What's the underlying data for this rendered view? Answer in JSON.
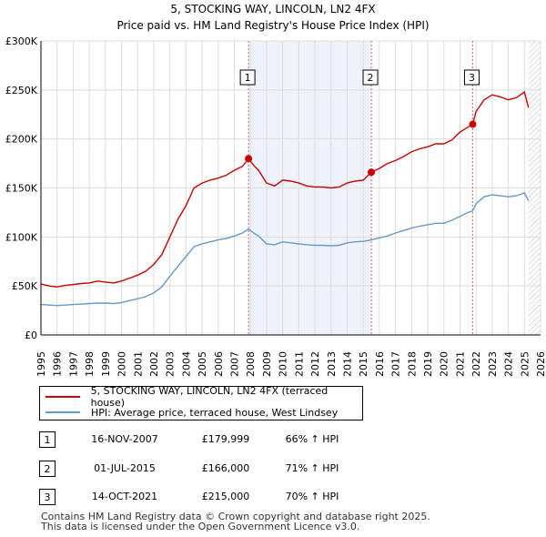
{
  "chart_data": {
    "type": "line",
    "title": "5, STOCKING WAY, LINCOLN, LN2 4FX",
    "subtitle": "Price paid vs. HM Land Registry's House Price Index (HPI)",
    "xlim": [
      1995,
      2026
    ],
    "ylim": [
      0,
      300000
    ],
    "y_ticks": [
      0,
      50000,
      100000,
      150000,
      200000,
      250000,
      300000
    ],
    "y_tick_labels": [
      "£0",
      "£50K",
      "£100K",
      "£150K",
      "£200K",
      "£250K",
      "£300K"
    ],
    "x_ticks": [
      1995,
      1996,
      1997,
      1998,
      1999,
      2000,
      2001,
      2002,
      2003,
      2004,
      2005,
      2006,
      2007,
      2008,
      2009,
      2010,
      2011,
      2012,
      2013,
      2014,
      2015,
      2016,
      2017,
      2018,
      2019,
      2020,
      2021,
      2022,
      2023,
      2024,
      2025,
      2026
    ],
    "grid": true,
    "future_hatch_start": 2025.25,
    "series": [
      {
        "name": "5, STOCKING WAY, LINCOLN, LN2 4FX (terraced house)",
        "color": "#cc0000",
        "points": [
          [
            1995,
            52000
          ],
          [
            1995.5,
            50000
          ],
          [
            1996,
            49000
          ],
          [
            1996.5,
            50500
          ],
          [
            1997,
            51500
          ],
          [
            1997.5,
            52500
          ],
          [
            1998,
            53000
          ],
          [
            1998.5,
            55000
          ],
          [
            1999,
            54000
          ],
          [
            1999.5,
            53000
          ],
          [
            2000,
            55000
          ],
          [
            2000.5,
            58000
          ],
          [
            2001,
            61000
          ],
          [
            2001.5,
            65000
          ],
          [
            2002,
            72000
          ],
          [
            2002.5,
            82000
          ],
          [
            2003,
            100000
          ],
          [
            2003.5,
            118000
          ],
          [
            2004,
            132000
          ],
          [
            2004.5,
            150000
          ],
          [
            2005,
            155000
          ],
          [
            2005.5,
            158000
          ],
          [
            2006,
            160000
          ],
          [
            2006.5,
            163000
          ],
          [
            2007,
            168000
          ],
          [
            2007.5,
            172000
          ],
          [
            2007.88,
            179999
          ],
          [
            2008.2,
            173000
          ],
          [
            2008.5,
            168000
          ],
          [
            2009,
            155000
          ],
          [
            2009.5,
            152000
          ],
          [
            2010,
            158000
          ],
          [
            2010.5,
            157000
          ],
          [
            2011,
            155000
          ],
          [
            2011.5,
            152000
          ],
          [
            2012,
            151000
          ],
          [
            2012.5,
            151000
          ],
          [
            2013,
            150000
          ],
          [
            2013.5,
            151000
          ],
          [
            2014,
            155000
          ],
          [
            2014.5,
            157000
          ],
          [
            2015,
            158000
          ],
          [
            2015.5,
            166000
          ],
          [
            2016,
            170000
          ],
          [
            2016.5,
            175000
          ],
          [
            2017,
            178000
          ],
          [
            2017.5,
            182000
          ],
          [
            2018,
            187000
          ],
          [
            2018.5,
            190000
          ],
          [
            2019,
            192000
          ],
          [
            2019.5,
            195000
          ],
          [
            2020,
            195000
          ],
          [
            2020.5,
            199000
          ],
          [
            2021,
            207000
          ],
          [
            2021.5,
            212000
          ],
          [
            2021.79,
            215000
          ],
          [
            2022,
            228000
          ],
          [
            2022.5,
            240000
          ],
          [
            2023,
            245000
          ],
          [
            2023.5,
            243000
          ],
          [
            2024,
            240000
          ],
          [
            2024.5,
            242000
          ],
          [
            2025,
            248000
          ],
          [
            2025.25,
            232000
          ]
        ]
      },
      {
        "name": "HPI: Average price, terraced house, West Lindsey",
        "color": "#6699cc",
        "points": [
          [
            1995,
            31000
          ],
          [
            1995.5,
            30500
          ],
          [
            1996,
            30000
          ],
          [
            1996.5,
            30500
          ],
          [
            1997,
            31000
          ],
          [
            1997.5,
            31500
          ],
          [
            1998,
            32000
          ],
          [
            1998.5,
            32500
          ],
          [
            1999,
            32500
          ],
          [
            1999.5,
            32000
          ],
          [
            2000,
            33000
          ],
          [
            2000.5,
            35000
          ],
          [
            2001,
            37000
          ],
          [
            2001.5,
            39000
          ],
          [
            2002,
            43000
          ],
          [
            2002.5,
            49000
          ],
          [
            2003,
            60000
          ],
          [
            2003.5,
            70000
          ],
          [
            2004,
            80000
          ],
          [
            2004.5,
            90000
          ],
          [
            2005,
            93000
          ],
          [
            2005.5,
            95000
          ],
          [
            2006,
            97000
          ],
          [
            2006.5,
            98500
          ],
          [
            2007,
            101000
          ],
          [
            2007.5,
            104000
          ],
          [
            2007.88,
            108000
          ],
          [
            2008.2,
            104000
          ],
          [
            2008.5,
            101000
          ],
          [
            2009,
            93000
          ],
          [
            2009.5,
            92000
          ],
          [
            2010,
            95000
          ],
          [
            2010.5,
            94000
          ],
          [
            2011,
            93000
          ],
          [
            2011.5,
            92000
          ],
          [
            2012,
            91500
          ],
          [
            2012.5,
            91500
          ],
          [
            2013,
            91000
          ],
          [
            2013.5,
            91500
          ],
          [
            2014,
            94000
          ],
          [
            2014.5,
            95000
          ],
          [
            2015,
            95500
          ],
          [
            2015.5,
            97000
          ],
          [
            2016,
            99000
          ],
          [
            2016.5,
            101000
          ],
          [
            2017,
            104000
          ],
          [
            2017.5,
            106500
          ],
          [
            2018,
            109000
          ],
          [
            2018.5,
            111000
          ],
          [
            2019,
            112500
          ],
          [
            2019.5,
            114000
          ],
          [
            2020,
            114000
          ],
          [
            2020.5,
            117000
          ],
          [
            2021,
            121000
          ],
          [
            2021.5,
            125000
          ],
          [
            2021.79,
            126500
          ],
          [
            2022,
            134000
          ],
          [
            2022.5,
            141000
          ],
          [
            2023,
            143000
          ],
          [
            2023.5,
            142000
          ],
          [
            2024,
            141000
          ],
          [
            2024.5,
            142000
          ],
          [
            2025,
            145000
          ],
          [
            2025.25,
            137000
          ]
        ]
      }
    ],
    "sales": [
      {
        "label": "1",
        "x": 2007.88,
        "price": 179999
      },
      {
        "label": "2",
        "x": 2015.5,
        "price": 166000
      },
      {
        "label": "3",
        "x": 2021.79,
        "price": 215000
      }
    ],
    "shaded_spans": [
      [
        2007.88,
        2015.5
      ]
    ]
  },
  "legend": {
    "series1_label": "5, STOCKING WAY, LINCOLN, LN2 4FX (terraced house)",
    "series2_label": "HPI: Average price, terraced house, West Lindsey"
  },
  "sales_table": [
    {
      "num": "1",
      "date": "16-NOV-2007",
      "price": "£179,999",
      "hpi": "66% ↑ HPI"
    },
    {
      "num": "2",
      "date": "01-JUL-2015",
      "price": "£166,000",
      "hpi": "71% ↑ HPI"
    },
    {
      "num": "3",
      "date": "14-OCT-2021",
      "price": "£215,000",
      "hpi": "70% ↑ HPI"
    }
  ],
  "footer": {
    "line1": "Contains HM Land Registry data © Crown copyright and database right 2025.",
    "line2": "This data is licensed under the Open Government Licence v3.0."
  }
}
